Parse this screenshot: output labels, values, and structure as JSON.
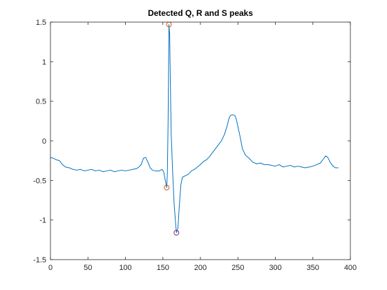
{
  "chart_data": {
    "type": "line",
    "title": "Detected Q, R and S peaks",
    "xlabel": "",
    "ylabel": "",
    "xlim": [
      0,
      400
    ],
    "ylim": [
      -1.5,
      1.5
    ],
    "x_ticks": [
      0,
      50,
      100,
      150,
      200,
      250,
      300,
      350,
      400
    ],
    "y_ticks": [
      -1.5,
      -1,
      -0.5,
      0,
      0.5,
      1,
      1.5
    ],
    "x_tick_labels": [
      "0",
      "50",
      "100",
      "150",
      "200",
      "250",
      "300",
      "350",
      "400"
    ],
    "y_tick_labels": [
      "-1.5",
      "-1",
      "-0.5",
      "0",
      "0.5",
      "1",
      "1.5"
    ],
    "grid": false,
    "box": true,
    "series": [
      {
        "color": "#0072BD",
        "points": [
          [
            0,
            -0.21
          ],
          [
            4,
            -0.22
          ],
          [
            8,
            -0.24
          ],
          [
            12,
            -0.25
          ],
          [
            16,
            -0.3
          ],
          [
            20,
            -0.33
          ],
          [
            25,
            -0.34
          ],
          [
            30,
            -0.36
          ],
          [
            35,
            -0.37
          ],
          [
            40,
            -0.36
          ],
          [
            45,
            -0.38
          ],
          [
            50,
            -0.37
          ],
          [
            55,
            -0.36
          ],
          [
            60,
            -0.38
          ],
          [
            65,
            -0.37
          ],
          [
            70,
            -0.39
          ],
          [
            75,
            -0.38
          ],
          [
            80,
            -0.37
          ],
          [
            85,
            -0.39
          ],
          [
            90,
            -0.38
          ],
          [
            95,
            -0.37
          ],
          [
            100,
            -0.38
          ],
          [
            105,
            -0.37
          ],
          [
            110,
            -0.36
          ],
          [
            115,
            -0.35
          ],
          [
            118,
            -0.33
          ],
          [
            121,
            -0.3
          ],
          [
            124,
            -0.22
          ],
          [
            127,
            -0.21
          ],
          [
            130,
            -0.27
          ],
          [
            133,
            -0.34
          ],
          [
            136,
            -0.37
          ],
          [
            140,
            -0.38
          ],
          [
            145,
            -0.38
          ],
          [
            149,
            -0.36
          ],
          [
            151,
            -0.39
          ],
          [
            153,
            -0.49
          ],
          [
            155,
            -0.59
          ],
          [
            156,
            -0.4
          ],
          [
            157,
            0.3
          ],
          [
            158,
            1.47
          ],
          [
            159,
            1.35
          ],
          [
            160,
            0.7
          ],
          [
            161,
            0.1
          ],
          [
            163,
            -0.4
          ],
          [
            165,
            -0.8
          ],
          [
            167,
            -1.05
          ],
          [
            168,
            -1.16
          ],
          [
            170,
            -1.1
          ],
          [
            172,
            -0.8
          ],
          [
            174,
            -0.55
          ],
          [
            176,
            -0.46
          ],
          [
            180,
            -0.44
          ],
          [
            184,
            -0.42
          ],
          [
            188,
            -0.38
          ],
          [
            192,
            -0.36
          ],
          [
            196,
            -0.33
          ],
          [
            200,
            -0.3
          ],
          [
            204,
            -0.26
          ],
          [
            208,
            -0.24
          ],
          [
            212,
            -0.2
          ],
          [
            216,
            -0.15
          ],
          [
            220,
            -0.1
          ],
          [
            224,
            -0.05
          ],
          [
            228,
            0.0
          ],
          [
            232,
            0.08
          ],
          [
            236,
            0.2
          ],
          [
            238,
            0.28
          ],
          [
            240,
            0.32
          ],
          [
            243,
            0.33
          ],
          [
            246,
            0.32
          ],
          [
            248,
            0.27
          ],
          [
            250,
            0.18
          ],
          [
            253,
            0.05
          ],
          [
            256,
            -0.1
          ],
          [
            260,
            -0.18
          ],
          [
            265,
            -0.22
          ],
          [
            270,
            -0.27
          ],
          [
            275,
            -0.29
          ],
          [
            280,
            -0.28
          ],
          [
            285,
            -0.3
          ],
          [
            290,
            -0.3
          ],
          [
            295,
            -0.31
          ],
          [
            300,
            -0.32
          ],
          [
            305,
            -0.3
          ],
          [
            310,
            -0.33
          ],
          [
            315,
            -0.32
          ],
          [
            320,
            -0.31
          ],
          [
            325,
            -0.33
          ],
          [
            330,
            -0.32
          ],
          [
            335,
            -0.33
          ],
          [
            340,
            -0.34
          ],
          [
            345,
            -0.33
          ],
          [
            350,
            -0.32
          ],
          [
            355,
            -0.3
          ],
          [
            360,
            -0.28
          ],
          [
            364,
            -0.23
          ],
          [
            367,
            -0.19
          ],
          [
            370,
            -0.21
          ],
          [
            373,
            -0.27
          ],
          [
            377,
            -0.32
          ],
          [
            380,
            -0.34
          ],
          [
            384,
            -0.34
          ]
        ]
      }
    ],
    "markers": [
      {
        "x": 155,
        "y": -0.59,
        "color": "#D95319"
      },
      {
        "x": 158,
        "y": 1.47,
        "color": "#D95319"
      },
      {
        "x": 168,
        "y": -1.16,
        "color": "#7E2F8E"
      }
    ]
  }
}
